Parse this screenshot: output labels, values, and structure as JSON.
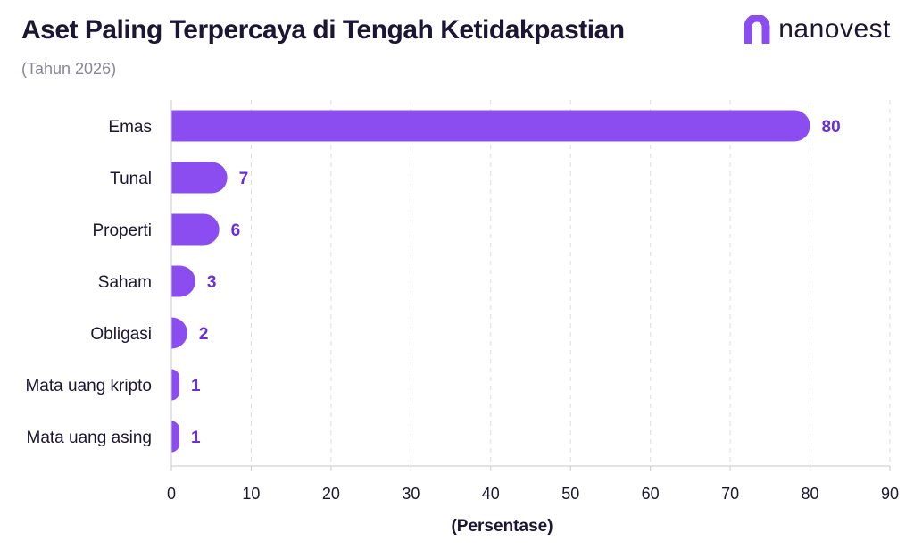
{
  "chart_data": {
    "type": "bar",
    "orientation": "horizontal",
    "title": "Aset Paling Terpercaya di Tengah Ketidakpastian",
    "subtitle": "(Tahun 2026)",
    "categories": [
      "Emas",
      "Tunal",
      "Properti",
      "Saham",
      "Obligasi",
      "Mata uang kripto",
      "Mata uang asing"
    ],
    "values": [
      80,
      7,
      6,
      3,
      2,
      1,
      1
    ],
    "xlabel": "(Persentase)",
    "ylabel": "",
    "xlim": [
      0,
      90
    ],
    "xticks": [
      0,
      10,
      20,
      30,
      40,
      50,
      60,
      70,
      80,
      90
    ],
    "grid": true,
    "bar_color": "#8b4df0",
    "label_color": "#6a2fd6"
  },
  "brand": {
    "name": "nanovest",
    "color": "#8b4df0"
  }
}
